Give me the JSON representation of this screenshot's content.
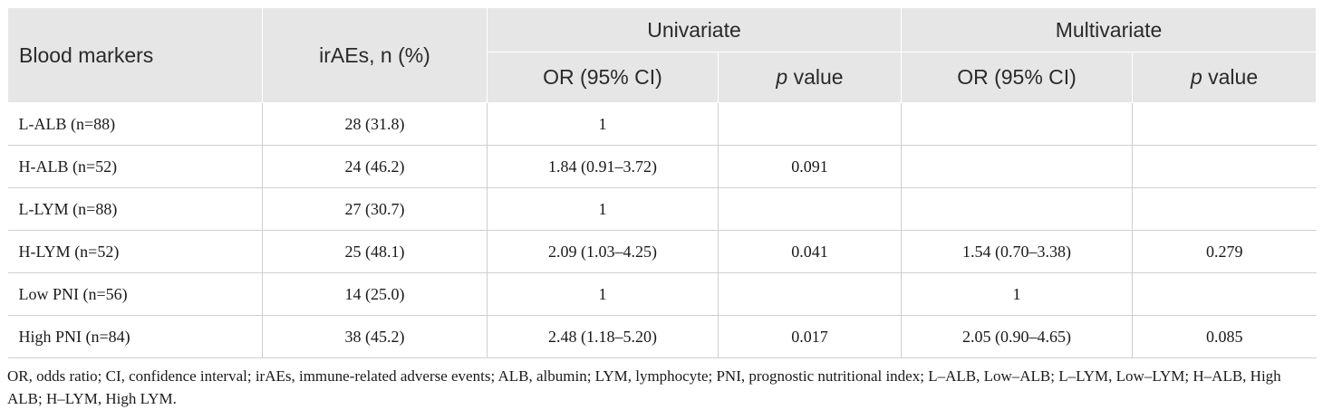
{
  "table": {
    "header": {
      "col_blood_markers": "Blood markers",
      "col_iraes": "irAEs, n (%)",
      "group_univariate": "Univariate",
      "group_multivariate": "Multivariate",
      "uni_or": "OR (95% CI)",
      "uni_p_italic": "p",
      "uni_p_rest": " value",
      "multi_or": "OR (95% CI)",
      "multi_p_italic": "p",
      "multi_p_rest": " value"
    },
    "rows": [
      {
        "marker": "L-ALB (n=88)",
        "iraes": "28 (31.8)",
        "uni_or": "1",
        "uni_p": "",
        "multi_or": "",
        "multi_p": ""
      },
      {
        "marker": "H-ALB (n=52)",
        "iraes": "24 (46.2)",
        "uni_or": "1.84 (0.91–3.72)",
        "uni_p": "0.091",
        "multi_or": "",
        "multi_p": ""
      },
      {
        "marker": "L-LYM (n=88)",
        "iraes": "27 (30.7)",
        "uni_or": "1",
        "uni_p": "",
        "multi_or": "",
        "multi_p": ""
      },
      {
        "marker": "H-LYM (n=52)",
        "iraes": "25 (48.1)",
        "uni_or": "2.09 (1.03–4.25)",
        "uni_p": "0.041",
        "multi_or": "1.54 (0.70–3.38)",
        "multi_p": "0.279"
      },
      {
        "marker": "Low PNI (n=56)",
        "iraes": "14 (25.0)",
        "uni_or": "1",
        "uni_p": "",
        "multi_or": "1",
        "multi_p": ""
      },
      {
        "marker": "High PNI (n=84)",
        "iraes": "38 (45.2)",
        "uni_or": "2.48 (1.18–5.20)",
        "uni_p": "0.017",
        "multi_or": "2.05 (0.90–4.65)",
        "multi_p": "0.085"
      }
    ]
  },
  "footnote": "OR, odds ratio; CI, confidence interval; irAEs, immune-related adverse events; ALB, albumin; LYM, lymphocyte; PNI, prognostic nutritional index; L–ALB, Low–ALB; L–LYM, Low–LYM; H–ALB, High ALB; H–LYM, High LYM."
}
